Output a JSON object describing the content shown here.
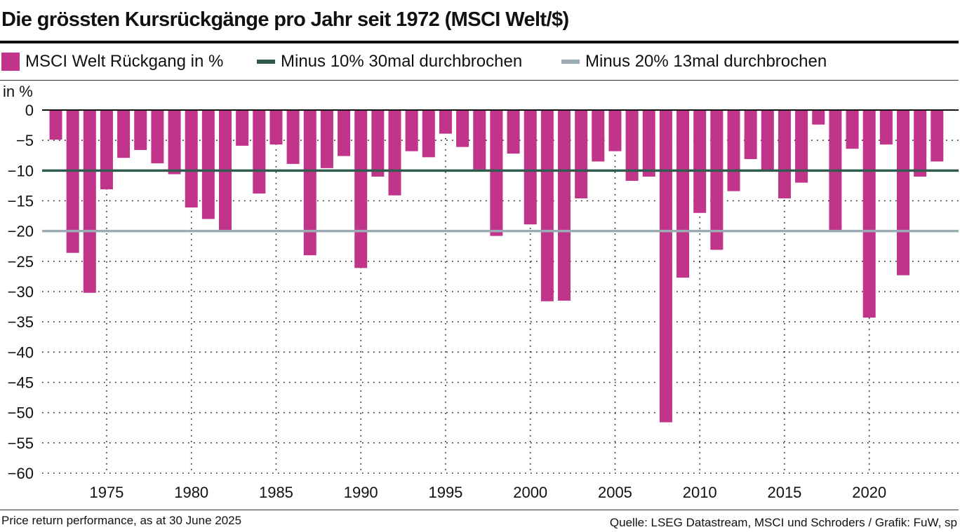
{
  "title": "Die grössten Kursrückgänge pro Jahr seit 1972 (MSCI Welt/$)",
  "footnote": "Price return performance, as at 30 June 2025",
  "source": "Quelle: LSEG Datastream, MSCI und Schroders / Grafik: FuW, sp",
  "colors": {
    "bar": "#c0348a",
    "line10": "#2f5a4e",
    "line20": "#9aabb3",
    "axis": "#111111"
  },
  "chart_data": {
    "type": "bar",
    "ylabel": "in %",
    "ylim": [
      -60,
      0
    ],
    "yticks": [
      0,
      -5,
      -10,
      -15,
      -20,
      -25,
      -30,
      -35,
      -40,
      -45,
      -50,
      -55,
      -60
    ],
    "xtick_labels": [
      "1975",
      "1980",
      "1985",
      "1990",
      "1995",
      "2000",
      "2005",
      "2010",
      "2015",
      "2020"
    ],
    "grid": true,
    "legend": [
      {
        "label": "MSCI Welt Rückgang in %",
        "kind": "box",
        "color": "#c0348a"
      },
      {
        "label": "Minus 10% 30mal durchbrochen",
        "kind": "line",
        "color": "#2f5a4e"
      },
      {
        "label": "Minus 20% 13mal durchbrochen",
        "kind": "line",
        "color": "#9aabb3"
      }
    ],
    "reference_lines": [
      {
        "value": -10,
        "color": "#2f5a4e"
      },
      {
        "value": -20,
        "color": "#9aabb3"
      }
    ],
    "categories": [
      1972,
      1973,
      1974,
      1975,
      1976,
      1977,
      1978,
      1979,
      1980,
      1981,
      1982,
      1983,
      1984,
      1985,
      1986,
      1987,
      1988,
      1989,
      1990,
      1991,
      1992,
      1993,
      1994,
      1995,
      1996,
      1997,
      1998,
      1999,
      2000,
      2001,
      2002,
      2003,
      2004,
      2005,
      2006,
      2007,
      2008,
      2009,
      2010,
      2011,
      2012,
      2013,
      2014,
      2015,
      2016,
      2017,
      2018,
      2019,
      2020,
      2021,
      2022,
      2023,
      2024
    ],
    "values": [
      -4.9,
      -23.6,
      -30.2,
      -13.1,
      -7.9,
      -6.6,
      -8.8,
      -10.6,
      -16.1,
      -18.0,
      -19.9,
      -5.9,
      -13.8,
      -5.7,
      -8.9,
      -24.0,
      -9.6,
      -7.6,
      -26.1,
      -11.0,
      -14.1,
      -6.8,
      -7.8,
      -3.9,
      -6.1,
      -9.8,
      -20.8,
      -7.2,
      -18.9,
      -31.6,
      -31.5,
      -14.6,
      -8.5,
      -6.8,
      -11.7,
      -11.0,
      -51.6,
      -27.7,
      -17.0,
      -23.1,
      -13.4,
      -8.1,
      -9.9,
      -14.6,
      -12.0,
      -2.4,
      -20.0,
      -6.4,
      -34.3,
      -5.7,
      -27.3,
      -11.0,
      -8.5
    ]
  }
}
